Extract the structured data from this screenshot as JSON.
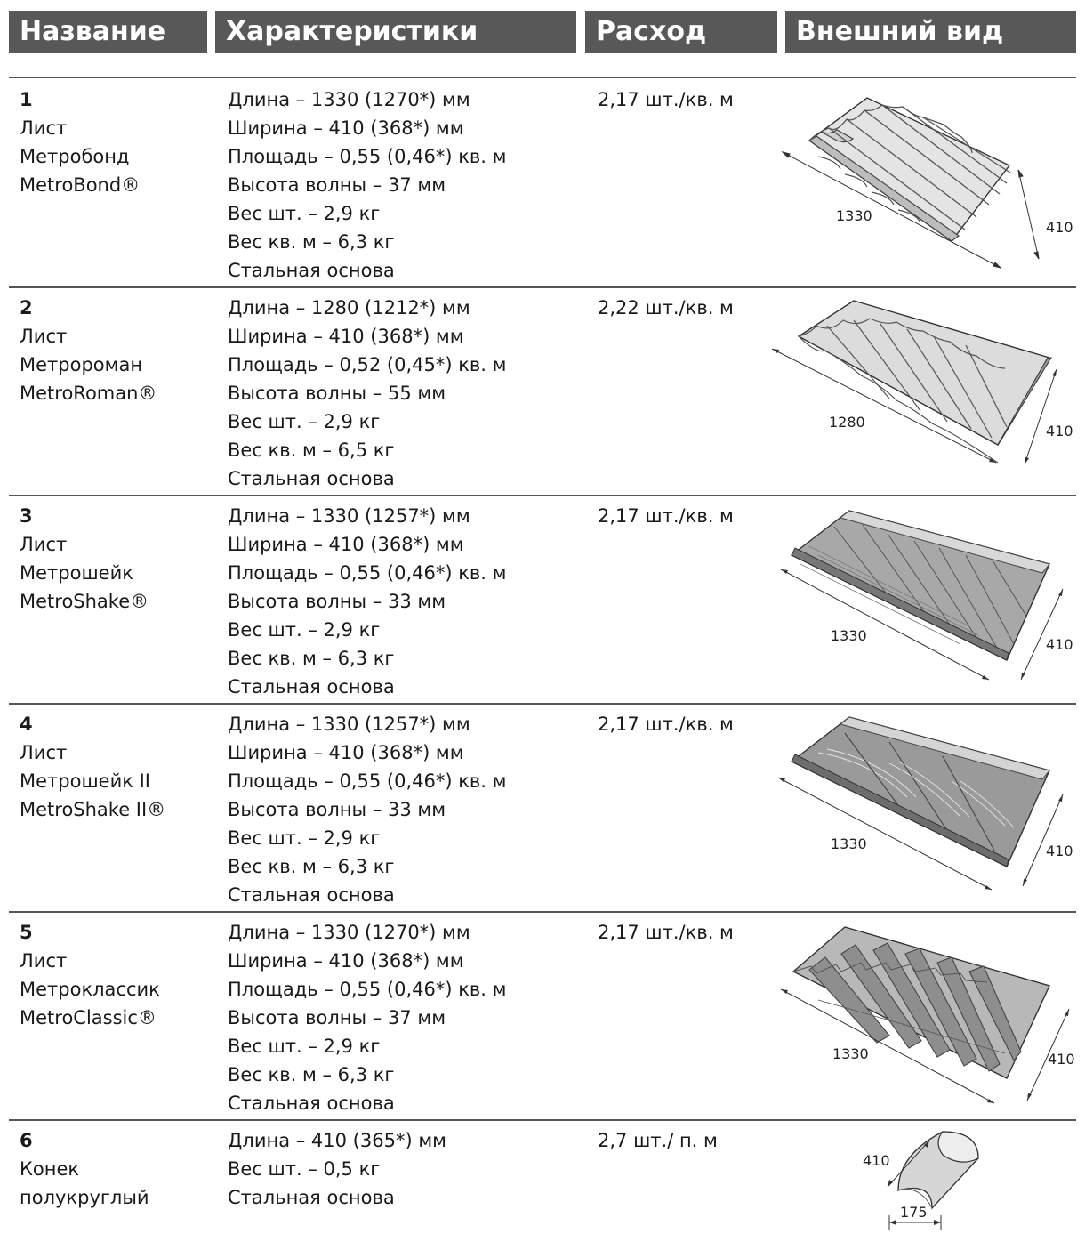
{
  "header": {
    "name": "Название",
    "specs": "Характеристики",
    "usage": "Расход",
    "appearance": "Внешний вид"
  },
  "rows": [
    {
      "number": "1",
      "name_lines": [
        "Лист",
        "Метробонд",
        "MetroBond®"
      ],
      "specs": [
        "Длина – 1330 (1270*) мм",
        "Ширина – 410 (368*) мм",
        "Площадь – 0,55 (0,46*) кв. м",
        "Высота волны – 37 мм",
        "Вес шт. – 2,9 кг",
        "Вес кв. м – 6,3 кг",
        "Стальная основа"
      ],
      "usage": "2,17 шт./кв. м",
      "dim_length": "1330",
      "dim_width": "410"
    },
    {
      "number": "2",
      "name_lines": [
        "Лист",
        "Метророман",
        "MetroRoman®"
      ],
      "specs": [
        "Длина – 1280 (1212*) мм",
        "Ширина – 410 (368*) мм",
        "Площадь – 0,52 (0,45*) кв. м",
        "Высота волны – 55 мм",
        "Вес шт. – 2,9 кг",
        "Вес кв. м – 6,5 кг",
        "Стальная основа"
      ],
      "usage": "2,22 шт./кв. м",
      "dim_length": "1280",
      "dim_width": "410"
    },
    {
      "number": "3",
      "name_lines": [
        "Лист",
        "Метрошейк",
        "MetroShake®"
      ],
      "specs": [
        "Длина – 1330 (1257*) мм",
        "Ширина – 410 (368*) мм",
        "Площадь – 0,55 (0,46*) кв. м",
        "Высота волны – 33 мм",
        "Вес шт. – 2,9 кг",
        "Вес кв. м – 6,3 кг",
        "Стальная основа"
      ],
      "usage": "2,17 шт./кв. м",
      "dim_length": "1330",
      "dim_width": "410"
    },
    {
      "number": "4",
      "name_lines": [
        "Лист",
        "Метрошейк II",
        "MetroShake II®"
      ],
      "specs": [
        "Длина – 1330 (1257*) мм",
        "Ширина – 410 (368*) мм",
        "Площадь – 0,55 (0,46*) кв. м",
        "Высота волны – 33 мм",
        "Вес шт. – 2,9 кг",
        "Вес кв. м – 6,3 кг",
        "Стальная основа"
      ],
      "usage": "2,17 шт./кв. м",
      "dim_length": "1330",
      "dim_width": "410"
    },
    {
      "number": "5",
      "name_lines": [
        "Лист",
        "Метроклассик",
        "MetroClassic®"
      ],
      "specs": [
        "Длина – 1330 (1270*) мм",
        "Ширина – 410 (368*) мм",
        "Площадь – 0,55 (0,46*) кв. м",
        "Высота волны – 37 мм",
        "Вес шт. – 2,9 кг",
        "Вес кв. м – 6,3 кг",
        "Стальная основа"
      ],
      "usage": "2,17 шт./кв. м",
      "dim_length": "1330",
      "dim_width": "410"
    },
    {
      "number": "6",
      "name_lines": [
        "Конек",
        "полукруглый"
      ],
      "specs": [
        "Длина – 410 (365*) мм",
        "Вес шт. – 0,5 кг",
        "Стальная основа"
      ],
      "usage": "2,7 шт./ п. м",
      "dim_length": "410",
      "dim_width": "175"
    }
  ]
}
